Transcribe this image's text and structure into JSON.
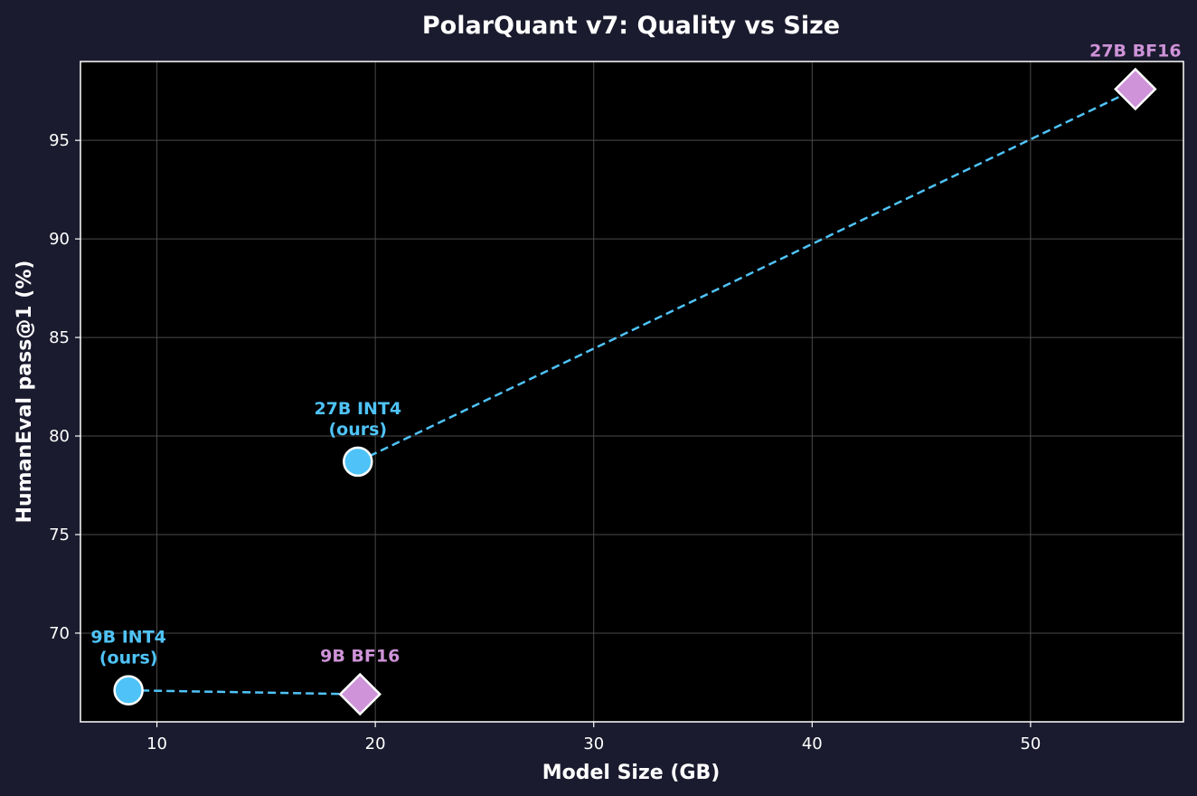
{
  "chart_data": {
    "type": "scatter",
    "title": "PolarQuant v7: Quality vs Size",
    "xlabel": "Model Size (GB)",
    "ylabel": "HumanEval pass@1 (%)",
    "xlim": [
      6.5,
      57
    ],
    "ylim": [
      65.5,
      99
    ],
    "xticks": [
      10,
      20,
      30,
      40,
      50
    ],
    "yticks": [
      70,
      75,
      80,
      85,
      90,
      95
    ],
    "grid": true,
    "colors": {
      "background": "#1b1b2f",
      "plot_background": "#000000",
      "grid": "#4a4a4a",
      "axis_frame": "#ffffff",
      "int4": "#4fc3f7",
      "bf16": "#ce93d8",
      "marker_edge": "#ffffff",
      "text": "#ffffff"
    },
    "points": [
      {
        "id": "9b-int4",
        "x": 8.7,
        "y": 67.1,
        "label_lines": [
          "9B INT4",
          "(ours)"
        ],
        "marker": "circle",
        "color": "#4fc3f7"
      },
      {
        "id": "9b-bf16",
        "x": 19.3,
        "y": 66.9,
        "label_lines": [
          "9B BF16"
        ],
        "marker": "diamond",
        "color": "#ce93d8"
      },
      {
        "id": "27b-int4",
        "x": 19.2,
        "y": 78.7,
        "label_lines": [
          "27B INT4",
          "(ours)"
        ],
        "marker": "circle",
        "color": "#4fc3f7"
      },
      {
        "id": "27b-bf16",
        "x": 54.8,
        "y": 97.6,
        "label_lines": [
          "27B BF16"
        ],
        "marker": "diamond",
        "color": "#ce93d8"
      }
    ],
    "connectors": [
      {
        "from": "9b-int4",
        "to": "9b-bf16",
        "style": "dashed",
        "color": "#4fc3f7"
      },
      {
        "from": "27b-int4",
        "to": "27b-bf16",
        "style": "dashed",
        "color": "#4fc3f7"
      }
    ]
  }
}
